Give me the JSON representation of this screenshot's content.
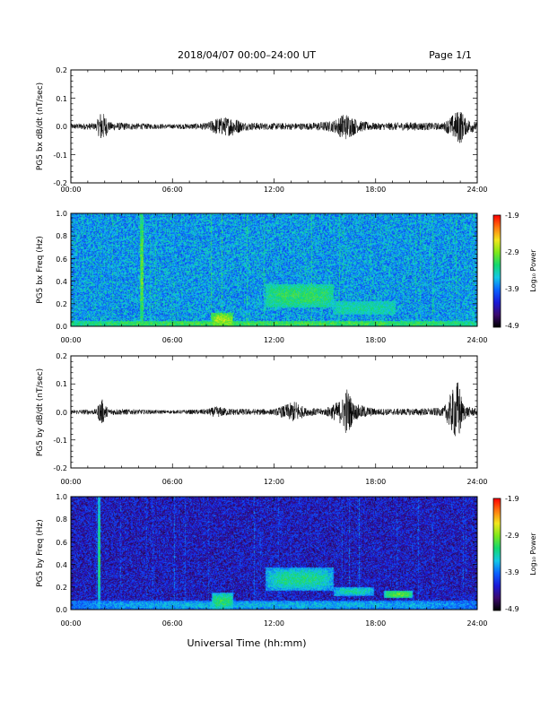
{
  "header": {
    "date_range": "2018/04/07   00:00–24:00 UT",
    "page": "Page 1/1"
  },
  "footer": {
    "xlabel": "Universal Time (hh:mm)"
  },
  "colors": {
    "waveform": "#000000",
    "colormap": [
      "#000000",
      "#3b0a6e",
      "#1a1ad8",
      "#0a62ff",
      "#14c8e6",
      "#14d86e",
      "#7ee81a",
      "#f2e61e",
      "#ff7a10",
      "#ff0000"
    ]
  },
  "chart_data": [
    {
      "type": "line",
      "ylabel": "PG5 bx dB/dt (nT/sec)",
      "xticks": [
        "00:00",
        "06:00",
        "12:00",
        "18:00",
        "24:00"
      ],
      "yticks": [
        "-0.2",
        "-0.1",
        "0.0",
        "0.1",
        "0.2"
      ],
      "xlim": [
        0,
        24
      ],
      "ylim": [
        -0.2,
        0.2
      ],
      "x_unit": "hours UT",
      "envelope": {
        "x": [
          0,
          1.5,
          1.8,
          2.3,
          4.5,
          6.0,
          8.0,
          8.6,
          9.5,
          10.2,
          11.5,
          12.5,
          14.0,
          15.5,
          16.2,
          17.0,
          18.0,
          20.0,
          22.0,
          23.0,
          23.3,
          24.0
        ],
        "y": [
          0.01,
          0.012,
          0.06,
          0.015,
          0.01,
          0.008,
          0.012,
          0.03,
          0.035,
          0.015,
          0.012,
          0.012,
          0.012,
          0.02,
          0.05,
          0.02,
          0.012,
          0.015,
          0.012,
          0.065,
          0.03,
          0.015
        ]
      }
    },
    {
      "type": "heatmap",
      "ylabel": "PG5 bx Freq (Hz)",
      "xticks": [
        "00:00",
        "06:00",
        "12:00",
        "18:00",
        "24:00"
      ],
      "yticks": [
        "0.0",
        "0.2",
        "0.4",
        "0.6",
        "0.8",
        "1.0"
      ],
      "xlim": [
        0,
        24
      ],
      "ylim": [
        0,
        1.0
      ],
      "colorbar": {
        "label": "Log₁₀ Power",
        "ticks": [
          "-1.9",
          "-2.9",
          "-3.9",
          "-4.9"
        ],
        "range": [
          -4.9,
          -1.9
        ]
      },
      "background_level": -3.7,
      "features": [
        {
          "t": [
            11.5,
            15.5
          ],
          "f": [
            0.17,
            0.37
          ],
          "level": -3.2
        },
        {
          "t": [
            15.5,
            19.2
          ],
          "f": [
            0.1,
            0.22
          ],
          "level": -3.4
        },
        {
          "t": [
            0,
            24
          ],
          "f": [
            0.0,
            0.05
          ],
          "level": -3.1
        },
        {
          "t": [
            8.3,
            9.6
          ],
          "f": [
            0.0,
            0.12
          ],
          "level": -2.8
        },
        {
          "t": [
            4.1,
            4.3
          ],
          "f": [
            0.0,
            1.0
          ],
          "level": -3.0
        }
      ]
    },
    {
      "type": "line",
      "ylabel": "PG5 by dB/dt (nT/sec)",
      "xticks": [
        "00:00",
        "06:00",
        "12:00",
        "18:00",
        "24:00"
      ],
      "yticks": [
        "-0.2",
        "-0.1",
        "0.0",
        "0.1",
        "0.2"
      ],
      "xlim": [
        0,
        24
      ],
      "ylim": [
        -0.2,
        0.2
      ],
      "x_unit": "hours UT",
      "envelope": {
        "x": [
          0,
          1.5,
          1.8,
          2.2,
          4.5,
          6.0,
          8.0,
          8.6,
          9.4,
          12.0,
          13.3,
          13.8,
          15.0,
          16.0,
          16.3,
          16.7,
          18.0,
          20.0,
          22.0,
          22.9,
          23.1,
          23.4,
          24.0
        ],
        "y": [
          0.008,
          0.01,
          0.05,
          0.012,
          0.008,
          0.006,
          0.01,
          0.02,
          0.012,
          0.01,
          0.04,
          0.015,
          0.012,
          0.045,
          0.09,
          0.03,
          0.012,
          0.012,
          0.015,
          0.12,
          0.04,
          0.02,
          0.012
        ]
      }
    },
    {
      "type": "heatmap",
      "ylabel": "PG5 by Freq (Hz)",
      "xticks": [
        "00:00",
        "06:00",
        "12:00",
        "18:00",
        "24:00"
      ],
      "yticks": [
        "0.0",
        "0.2",
        "0.4",
        "0.6",
        "0.8",
        "1.0"
      ],
      "xlim": [
        0,
        24
      ],
      "ylim": [
        0,
        1.0
      ],
      "colorbar": {
        "label": "Log₁₀ Power",
        "ticks": [
          "-1.9",
          "-2.9",
          "-3.9",
          "-4.9"
        ],
        "range": [
          -4.9,
          -1.9
        ]
      },
      "background_level": -4.3,
      "features": [
        {
          "t": [
            11.5,
            15.5
          ],
          "f": [
            0.17,
            0.37
          ],
          "level": -3.3
        },
        {
          "t": [
            15.5,
            17.9
          ],
          "f": [
            0.12,
            0.2
          ],
          "level": -3.4
        },
        {
          "t": [
            18.5,
            20.2
          ],
          "f": [
            0.1,
            0.17
          ],
          "level": -3.0
        },
        {
          "t": [
            0,
            24
          ],
          "f": [
            0.0,
            0.08
          ],
          "level": -3.6
        },
        {
          "t": [
            8.3,
            9.6
          ],
          "f": [
            0.0,
            0.15
          ],
          "level": -3.2
        },
        {
          "t": [
            1.6,
            1.75
          ],
          "f": [
            0.0,
            1.0
          ],
          "level": -3.2
        }
      ]
    }
  ]
}
